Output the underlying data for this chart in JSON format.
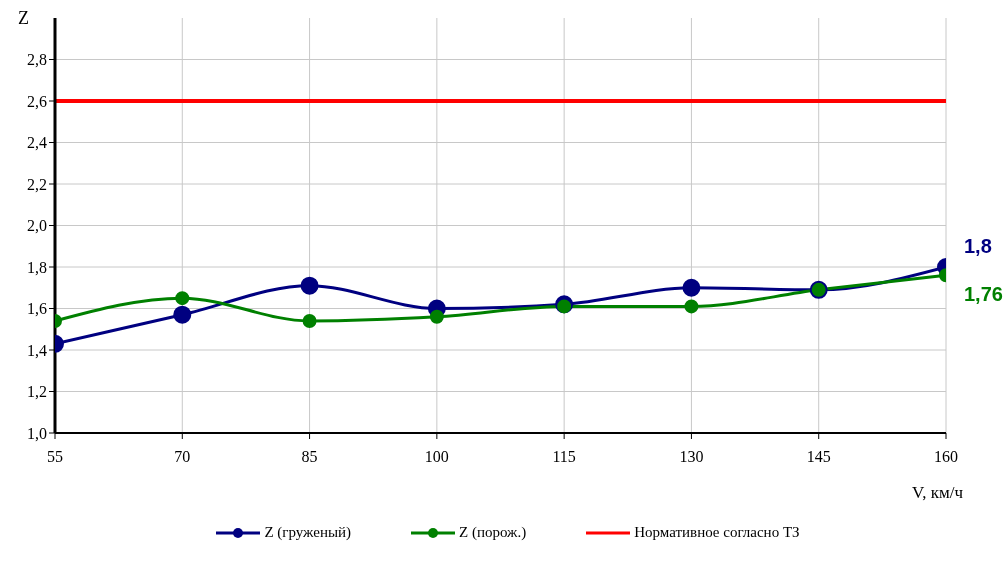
{
  "chart_data": {
    "type": "line",
    "ylabel": "Z",
    "xlabel": "V, км/ч",
    "x": [
      55,
      70,
      85,
      100,
      115,
      130,
      145,
      160
    ],
    "series": [
      {
        "name": "Z  (груженый)",
        "color": "#000080",
        "values": [
          1.43,
          1.57,
          1.71,
          1.6,
          1.62,
          1.7,
          1.69,
          1.8
        ],
        "value_labels": [
          null,
          null,
          null,
          null,
          null,
          null,
          null,
          "1,8"
        ]
      },
      {
        "name": "Z  (порож.)",
        "color": "#008000",
        "values": [
          1.54,
          1.65,
          1.54,
          1.56,
          1.61,
          1.61,
          1.69,
          1.76
        ],
        "value_labels": [
          null,
          null,
          null,
          null,
          null,
          null,
          null,
          "1,76"
        ]
      }
    ],
    "ref_lines": [
      {
        "axis": "y",
        "value": 2.6,
        "label": "Нормативное согласно  ТЗ",
        "color": "#ff0000"
      }
    ],
    "xlim": [
      55,
      160
    ],
    "xticks": [
      55,
      70,
      85,
      100,
      115,
      130,
      145,
      160
    ],
    "ylim": [
      1.0,
      3.0
    ],
    "yticks": [
      {
        "value": 1.0,
        "label": "1,0"
      },
      {
        "value": 1.2,
        "label": "1,2"
      },
      {
        "value": 1.4,
        "label": "1,4"
      },
      {
        "value": 1.6,
        "label": "1,6"
      },
      {
        "value": 1.8,
        "label": "1,8"
      },
      {
        "value": 2.0,
        "label": "2,0"
      },
      {
        "value": 2.2,
        "label": "2,2"
      },
      {
        "value": 2.4,
        "label": "2,4"
      },
      {
        "value": 2.6,
        "label": "2,6"
      },
      {
        "value": 2.8,
        "label": "2,8"
      }
    ],
    "grid": true,
    "legend": "bottom",
    "marker": "circle",
    "line_style": "solid"
  }
}
